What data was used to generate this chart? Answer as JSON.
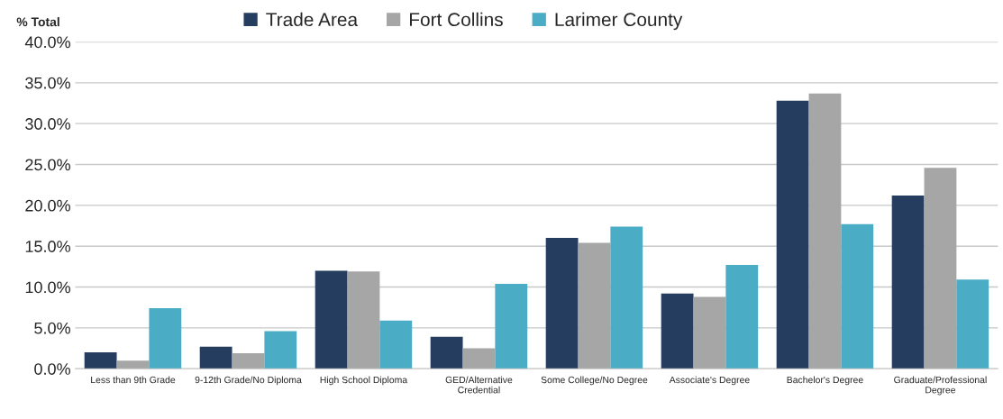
{
  "chart_data": {
    "type": "bar",
    "ylabel": "% Total",
    "categories": [
      "Less than 9th Grade",
      "9-12th Grade/No Diploma",
      "High School Diploma",
      "GED/Alternative\nCredential",
      "Some College/No Degree",
      "Associate's Degree",
      "Bachelor's Degree",
      "Graduate/Professional\nDegree"
    ],
    "series": [
      {
        "name": "Trade Area",
        "color": "#253d5e",
        "values": [
          2.0,
          2.7,
          12.0,
          3.9,
          16.0,
          9.2,
          32.8,
          21.2
        ]
      },
      {
        "name": "Fort Collins",
        "color": "#a6a6a6",
        "values": [
          1.0,
          1.9,
          11.9,
          2.5,
          15.4,
          8.8,
          33.7,
          24.6
        ]
      },
      {
        "name": "Larimer County",
        "color": "#4bacc6",
        "values": [
          7.4,
          4.6,
          5.9,
          10.4,
          17.4,
          12.7,
          17.7,
          10.9
        ]
      }
    ],
    "ylim": [
      0,
      40
    ],
    "yticks": [
      {
        "value": 0,
        "label": "0.0%"
      },
      {
        "value": 5,
        "label": "5.0%"
      },
      {
        "value": 10,
        "label": "10.0%"
      },
      {
        "value": 15,
        "label": "15.0%"
      },
      {
        "value": 20,
        "label": "20.0%"
      },
      {
        "value": 25,
        "label": "25.0%"
      },
      {
        "value": 30,
        "label": "30.0%"
      },
      {
        "value": 35,
        "label": "35.0%"
      },
      {
        "value": 40,
        "label": "40.0%"
      }
    ],
    "grid": "y",
    "legend": "top"
  }
}
